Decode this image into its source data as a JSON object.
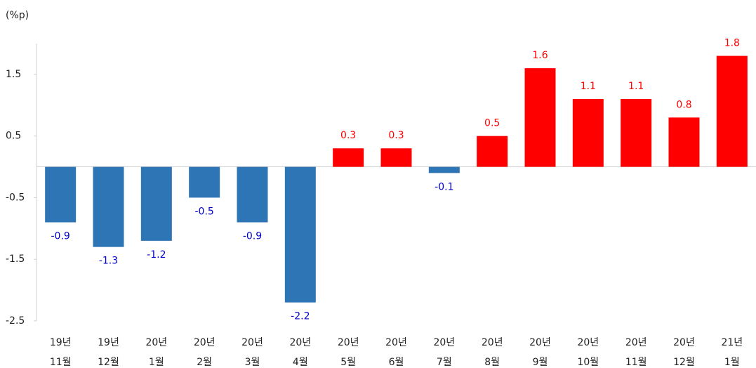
{
  "chart_data": {
    "type": "bar",
    "y_label": "(%p)",
    "categories": [
      [
        "19년",
        "11월"
      ],
      [
        "19년",
        "12월"
      ],
      [
        "20년",
        "1월"
      ],
      [
        "20년",
        "2월"
      ],
      [
        "20년",
        "3월"
      ],
      [
        "20년",
        "4월"
      ],
      [
        "20년",
        "5월"
      ],
      [
        "20년",
        "6월"
      ],
      [
        "20년",
        "7월"
      ],
      [
        "20년",
        "8월"
      ],
      [
        "20년",
        "9월"
      ],
      [
        "20년",
        "10월"
      ],
      [
        "20년",
        "11월"
      ],
      [
        "20년",
        "12월"
      ],
      [
        "21년",
        "1월"
      ]
    ],
    "values": [
      -0.9,
      -1.3,
      -1.2,
      -0.5,
      -0.9,
      -2.2,
      0.3,
      0.3,
      -0.1,
      0.5,
      1.6,
      1.1,
      1.1,
      0.8,
      1.8
    ],
    "positive_color": "#ff0000",
    "negative_color": "#2e75b6",
    "positive_label_color": "#ff0000",
    "negative_label_color": "#0000cc",
    "ylim": [
      -2.5,
      2.0
    ],
    "yticks": [
      -2.5,
      -1.5,
      -0.5,
      0.5,
      1.5
    ]
  }
}
